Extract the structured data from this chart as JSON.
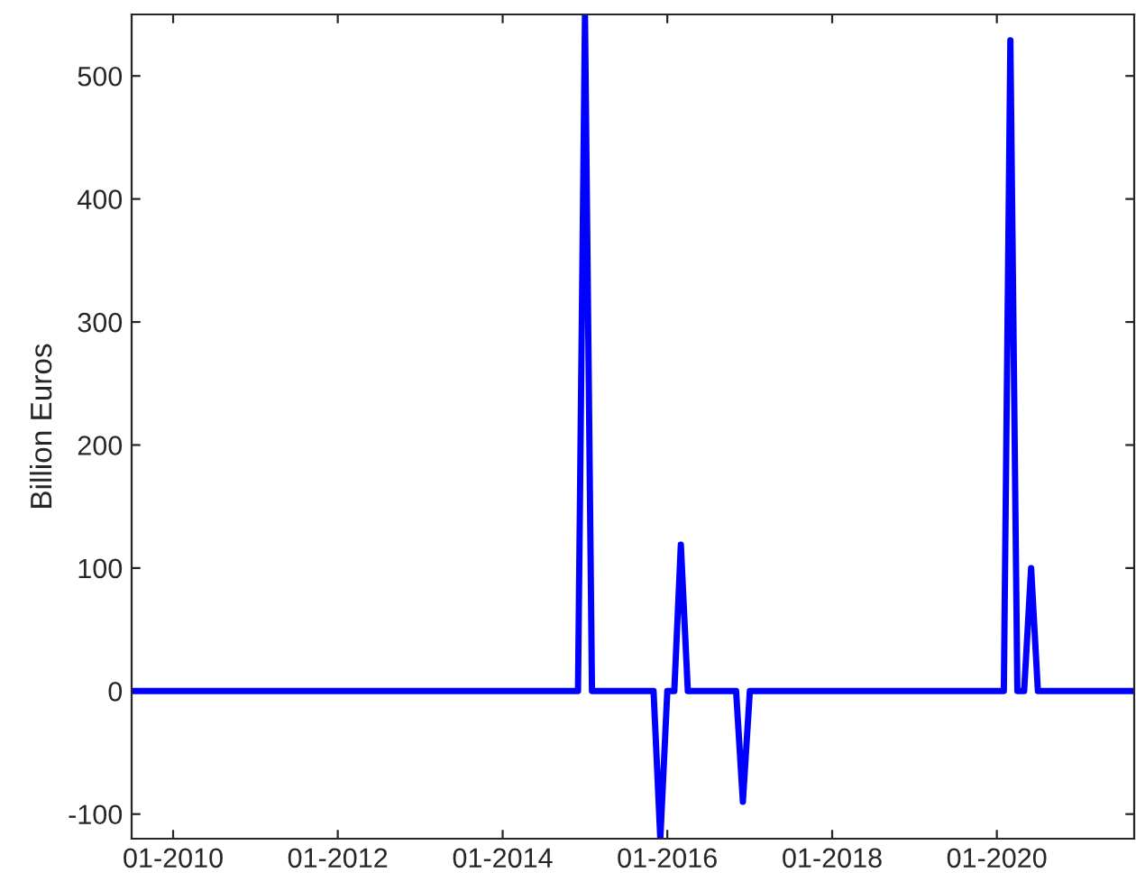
{
  "chart_data": {
    "type": "line",
    "ylabel": "Billion Euros",
    "x": [
      "2009-07",
      "2014-12",
      "2015-01",
      "2015-02",
      "2015-11",
      "2015-12",
      "2016-01",
      "2016-02",
      "2016-03",
      "2016-04",
      "2016-11",
      "2016-12",
      "2017-01",
      "2020-02",
      "2020-03",
      "2020-04",
      "2020-05",
      "2020-06",
      "2020-07",
      "2021-09"
    ],
    "series": [
      {
        "color": "#0000ff",
        "values": [
          0,
          0,
          550,
          0,
          0,
          -120,
          0,
          0,
          119,
          0,
          0,
          -90,
          0,
          0,
          529,
          0,
          0,
          100,
          0,
          0
        ]
      }
    ],
    "xlim": [
      "2009-07",
      "2021-09"
    ],
    "xticks": [
      {
        "value": "2010-01",
        "label": "01-2010"
      },
      {
        "value": "2012-01",
        "label": "01-2012"
      },
      {
        "value": "2014-01",
        "label": "01-2014"
      },
      {
        "value": "2016-01",
        "label": "01-2016"
      },
      {
        "value": "2018-01",
        "label": "01-2018"
      },
      {
        "value": "2020-01",
        "label": "01-2020"
      }
    ],
    "ylim": [
      -120,
      550
    ],
    "yticks": [
      -100,
      0,
      100,
      200,
      300,
      400,
      500
    ],
    "grid": false,
    "marker": "none",
    "line_style": "solid"
  }
}
